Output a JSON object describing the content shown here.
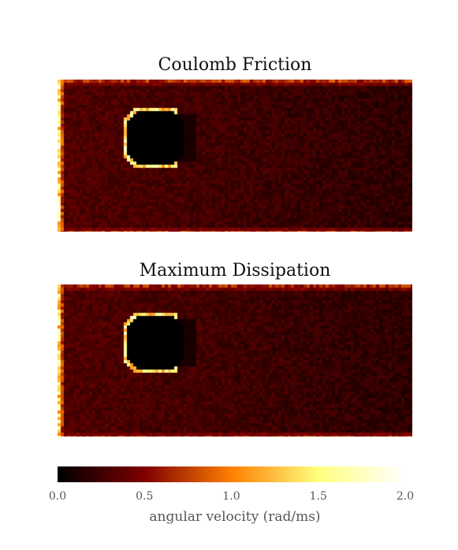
{
  "chart_data": [
    {
      "type": "heatmap",
      "title": "Coulomb Friction",
      "value_range": [
        0.0,
        2.0
      ],
      "colormap": "afmhot",
      "features": {
        "background_level": 0.25,
        "left_edge_level": 1.5,
        "boundary_level": 0.9,
        "obstacle_interior": 0.0,
        "obstacle_rim_level": 1.8,
        "wake_level": 0.08
      }
    },
    {
      "type": "heatmap",
      "title": "Maximum Dissipation",
      "value_range": [
        0.0,
        2.0
      ],
      "colormap": "afmhot",
      "features": {
        "background_level": 0.25,
        "left_edge_level": 1.4,
        "boundary_level": 0.85,
        "obstacle_interior": 0.0,
        "obstacle_rim_level": 1.8,
        "wake_level": 0.08
      }
    }
  ],
  "colorbar": {
    "label": "angular velocity (rad/ms)",
    "ticks": [
      "0.0",
      "0.5",
      "1.0",
      "1.5",
      "2.0"
    ],
    "range": [
      0.0,
      2.0
    ]
  }
}
